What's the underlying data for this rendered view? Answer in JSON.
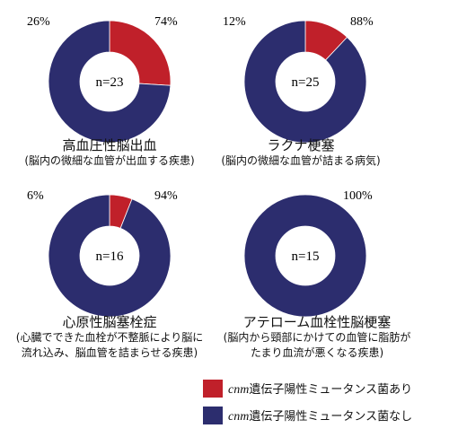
{
  "colors": {
    "with_mutation": "#c0202a",
    "without_mutation": "#2c2d6e"
  },
  "chart_data": [
    {
      "type": "pie",
      "title": "高血圧性脳出血",
      "subtitle": "(脳内の微細な血管が出血する疾患)",
      "center_label": "n=23",
      "slices": [
        {
          "series": "cnm遺伝子陽性ミュータンス菌あり",
          "value": 26,
          "label": "26%"
        },
        {
          "series": "cnm遺伝子陽性ミュータンス菌なし",
          "value": 74,
          "label": "74%"
        }
      ]
    },
    {
      "type": "pie",
      "title": "ラクナ梗塞",
      "subtitle": "(脳内の微細な血管が詰まる病気)",
      "center_label": "n=25",
      "slices": [
        {
          "series": "cnm遺伝子陽性ミュータンス菌あり",
          "value": 12,
          "label": "12%"
        },
        {
          "series": "cnm遺伝子陽性ミュータンス菌なし",
          "value": 88,
          "label": "88%"
        }
      ]
    },
    {
      "type": "pie",
      "title": "心原性脳塞栓症",
      "subtitle": "(心臓でできた血栓が不整脈により脳に\n流れ込み、脳血管を詰まらせる疾患)",
      "center_label": "n=16",
      "slices": [
        {
          "series": "cnm遺伝子陽性ミュータンス菌あり",
          "value": 6,
          "label": "6%"
        },
        {
          "series": "cnm遺伝子陽性ミュータンス菌なし",
          "value": 94,
          "label": "94%"
        }
      ]
    },
    {
      "type": "pie",
      "title": "アテローム血栓性脳梗塞",
      "subtitle": "(脳内から頸部にかけての血管に脂肪が\nたまり血流が悪くなる疾患)",
      "center_label": "n=15",
      "slices": [
        {
          "series": "cnm遺伝子陽性ミュータンス菌あり",
          "value": 0,
          "label": ""
        },
        {
          "series": "cnm遺伝子陽性ミュータンス菌なし",
          "value": 100,
          "label": "100%"
        }
      ]
    }
  ],
  "legend": [
    {
      "italic": "cnm",
      "text": "遺伝子陽性ミュータンス菌あり",
      "color": "#c0202a"
    },
    {
      "italic": "cnm",
      "text": "遺伝子陽性ミュータンス菌なし",
      "color": "#2c2d6e"
    }
  ]
}
